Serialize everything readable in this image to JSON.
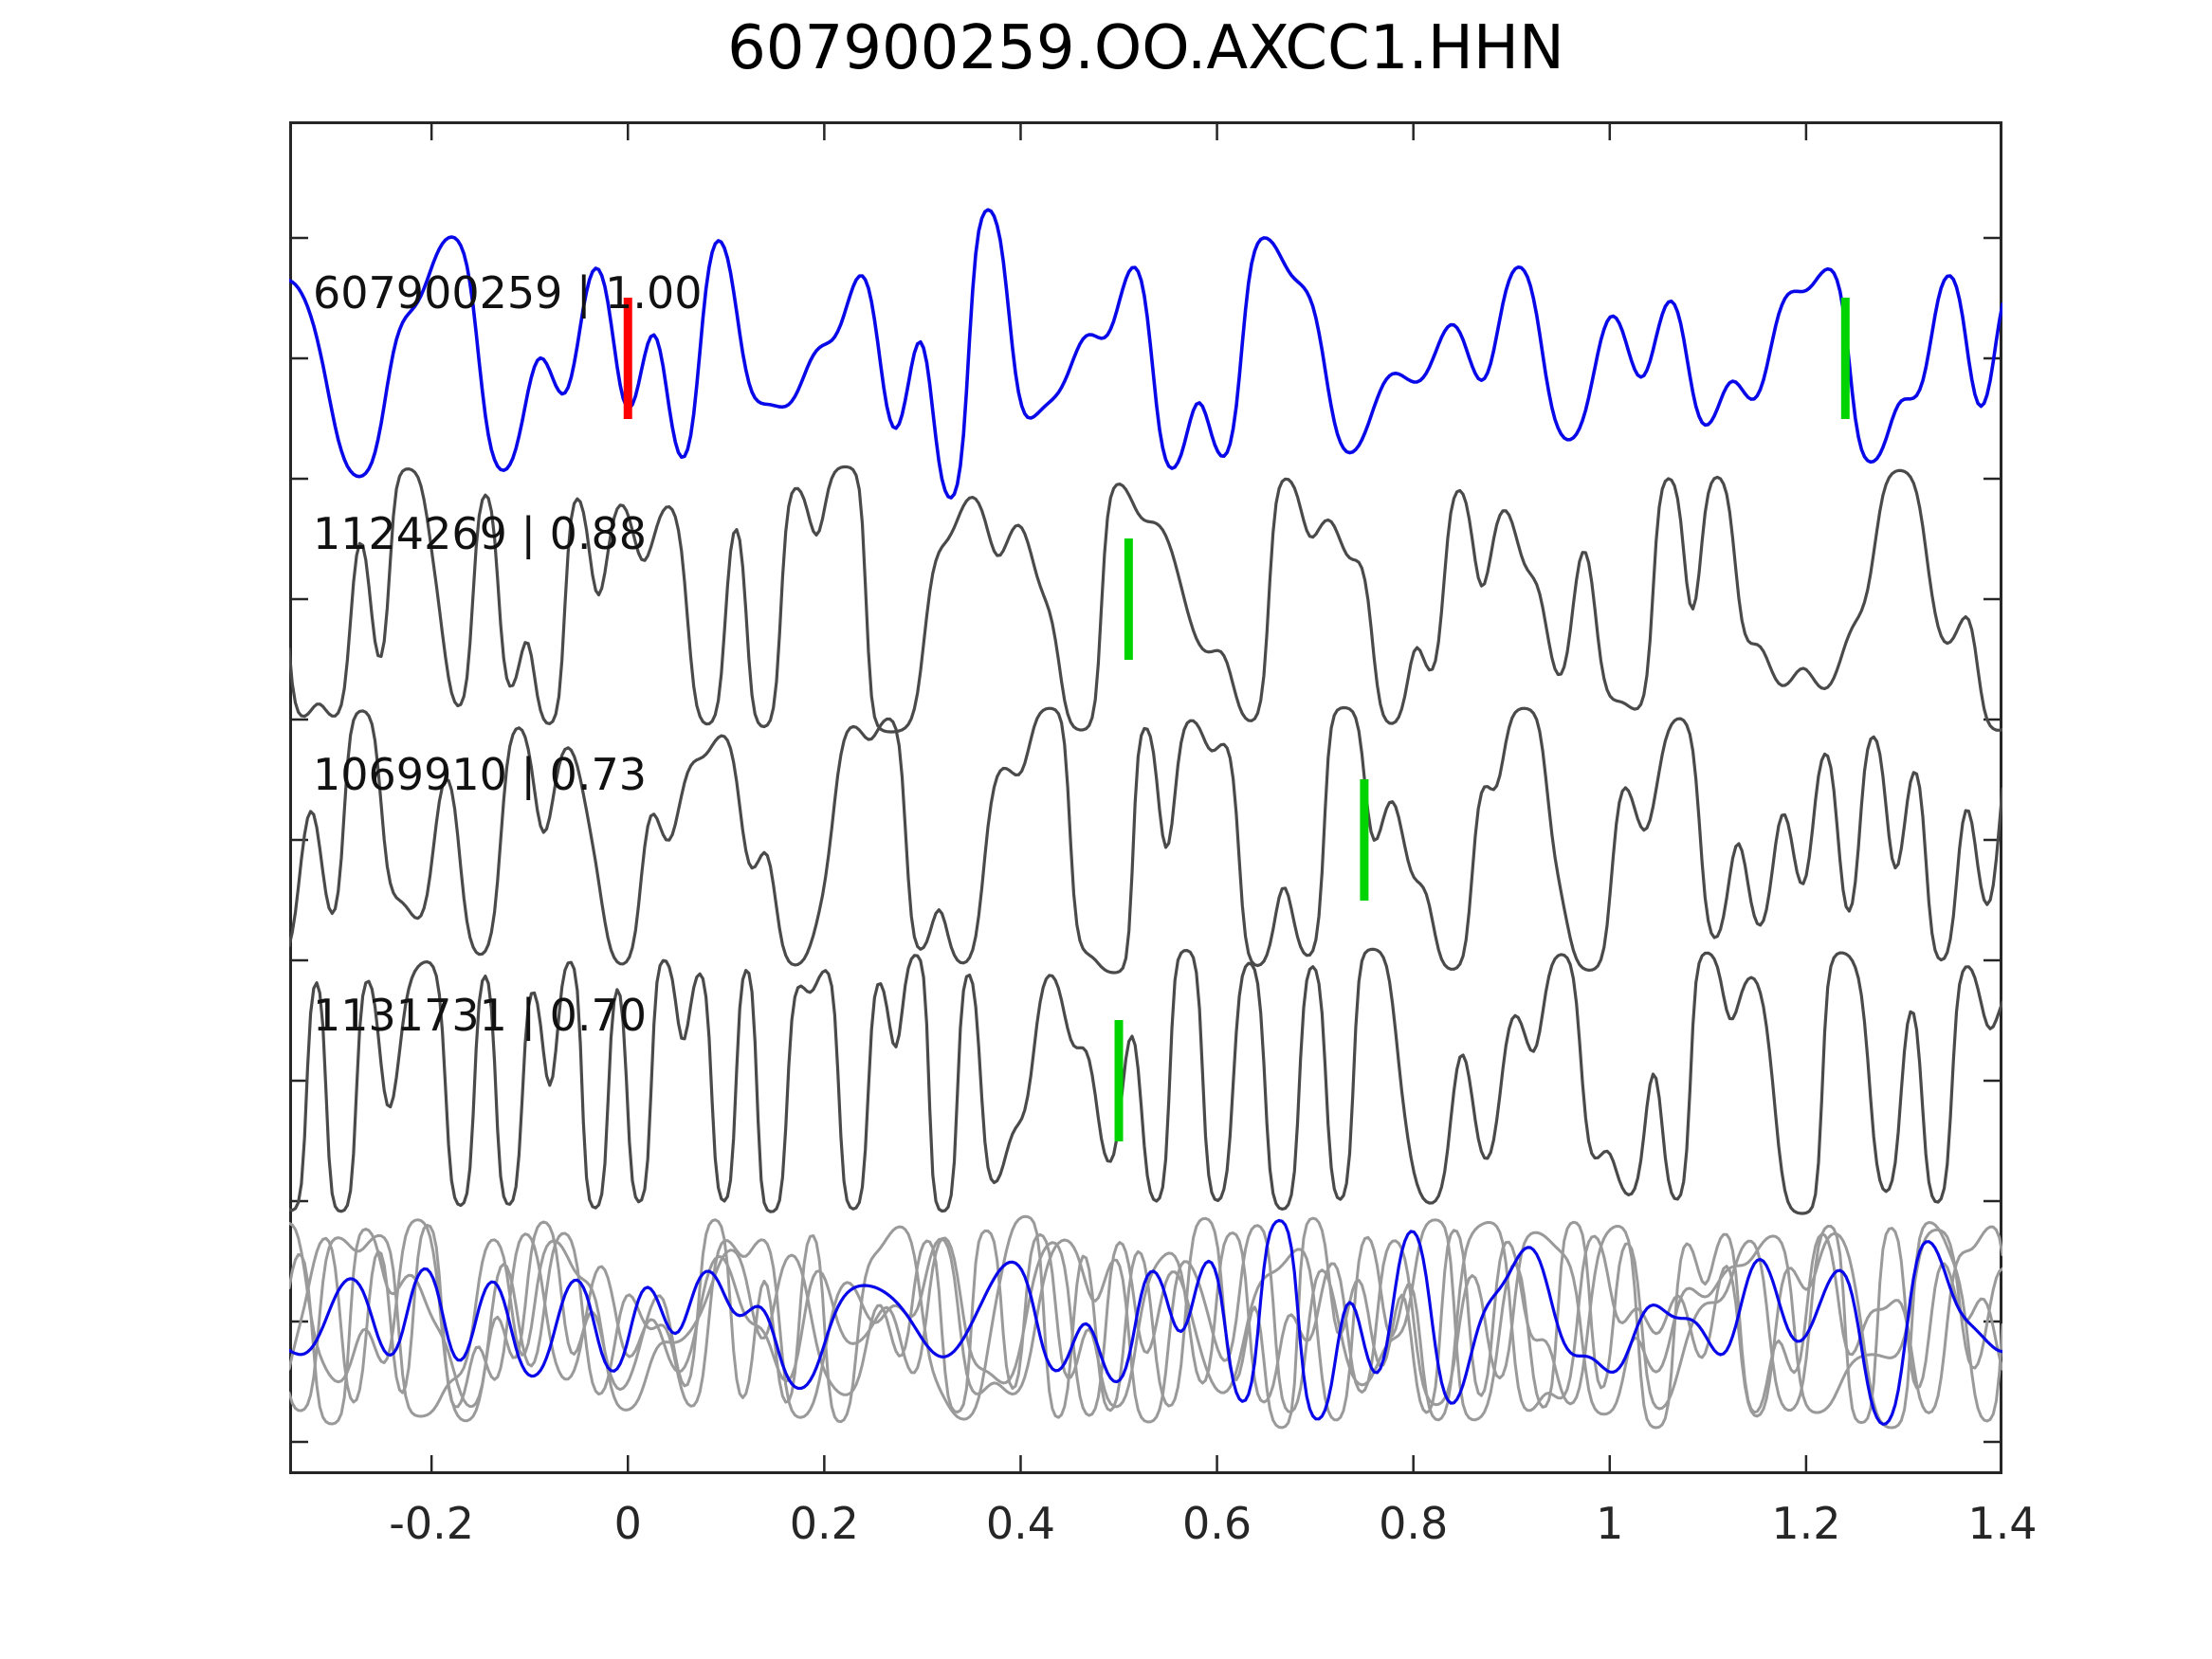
{
  "chart_data": {
    "type": "line",
    "title": "607900259.OO.AXCC1.HHN",
    "xlabel": "",
    "ylabel": "",
    "xlim": [
      -0.345,
      1.4
    ],
    "xticks": [
      -0.2,
      0,
      0.2,
      0.4,
      0.6,
      0.8,
      1,
      1.2,
      1.4
    ],
    "xtick_labels": [
      "-0.2",
      "0",
      "0.2",
      "0.4",
      "0.6",
      "0.8",
      "1",
      "1.2",
      "1.4"
    ],
    "grid": false,
    "legend": "none",
    "background": "#ffffff",
    "spine_color": "#262626",
    "tick_label_color": "#262626",
    "trace_label_color": "#111111",
    "detection_marker_color": "#ff0000",
    "pick_marker_color": "#00d400",
    "template_trace_color": "#0808e8",
    "cc_trace_color": "#4a4a4a",
    "stack_trace_color": "#9a9a9a",
    "rows": [
      {
        "label": "607900259 | 1.00",
        "template_id": "607900259",
        "correlation": 1.0,
        "series": [
          {
            "name": "template-waveform",
            "color": "#0808e8",
            "width": 3.6,
            "seed": 20,
            "fmin": 6,
            "fmax": 33,
            "clip": 1.25,
            "amp": 112,
            "env": {
              "center": 0.22,
              "width": 0.3,
              "gain": 0.45
            }
          }
        ],
        "markers": [
          {
            "x": 0.0,
            "color": "#ff0000",
            "name": "detection-marker"
          },
          {
            "x": 1.24,
            "color": "#00d400",
            "name": "pick-marker"
          }
        ]
      },
      {
        "label": "1124269 | 0.88",
        "template_id": "1124269",
        "correlation": 0.88,
        "series": [
          {
            "name": "detection-waveform-1124269",
            "color": "#4a4a4a",
            "width": 3.2,
            "seed": 87,
            "fmin": 8,
            "fmax": 42,
            "clip": 2.4,
            "amp": 140
          }
        ],
        "markers": [
          {
            "x": 0.51,
            "color": "#00d400",
            "name": "pick-marker"
          }
        ]
      },
      {
        "label": "1069910 | 0.73",
        "template_id": "1069910",
        "correlation": 0.73,
        "series": [
          {
            "name": "detection-waveform-1069910",
            "color": "#4a4a4a",
            "width": 3.2,
            "seed": 53,
            "fmin": 8,
            "fmax": 42,
            "clip": 2.4,
            "amp": 140
          }
        ],
        "markers": [
          {
            "x": 0.75,
            "color": "#00d400",
            "name": "pick-marker"
          }
        ]
      },
      {
        "label": "1131731 | 0.70",
        "template_id": "1131731",
        "correlation": 0.7,
        "series": [
          {
            "name": "detection-waveform-1131731",
            "color": "#4a4a4a",
            "width": 3.2,
            "seed": 171,
            "fmin": 8,
            "fmax": 42,
            "clip": 2.4,
            "amp": 140
          }
        ],
        "markers": [
          {
            "x": 0.5,
            "color": "#00d400",
            "name": "pick-marker"
          }
        ]
      },
      {
        "label": "",
        "template_id": "stack",
        "series": [
          {
            "name": "stack-waveform-1",
            "color": "#9a9a9a",
            "width": 3.0,
            "seed": 5,
            "fmin": 8,
            "fmax": 40,
            "clip": 2.0,
            "amp": 112
          },
          {
            "name": "stack-waveform-2",
            "color": "#9a9a9a",
            "width": 3.0,
            "seed": 14,
            "fmin": 8,
            "fmax": 40,
            "clip": 2.0,
            "amp": 108
          },
          {
            "name": "stack-waveform-3",
            "color": "#9a9a9a",
            "width": 3.0,
            "seed": 29,
            "fmin": 8,
            "fmax": 40,
            "clip": 2.0,
            "amp": 112
          },
          {
            "name": "stack-waveform-4",
            "color": "#9a9a9a",
            "width": 3.0,
            "seed": 38,
            "fmin": 7,
            "fmax": 36,
            "clip": 2.0,
            "amp": 100
          },
          {
            "name": "aligned-template-waveform",
            "color": "#0808e8",
            "width": 3.2,
            "seed": 99,
            "fmin": 6,
            "fmax": 32,
            "clip": 1.4,
            "amp": 88,
            "env": {
              "center": 1.03,
              "width": 0.22,
              "gain": 0.85
            }
          }
        ],
        "markers": []
      }
    ]
  }
}
